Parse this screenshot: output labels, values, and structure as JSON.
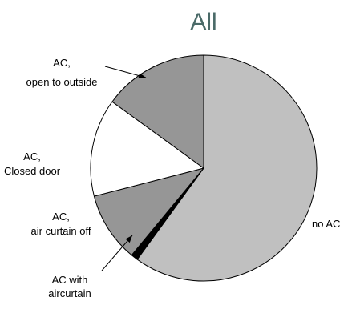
{
  "chart_data": {
    "type": "pie",
    "title": "All",
    "slices": [
      {
        "label": "no AC",
        "value": 60,
        "color": "#c0c0c0",
        "label_lines": [
          "no AC"
        ]
      },
      {
        "label": "AC with aircurtain",
        "value": 1,
        "color": "#000000",
        "label_lines": [
          "AC with",
          "aircurtain"
        ]
      },
      {
        "label": "AC, air curtain off",
        "value": 10,
        "color": "#969696",
        "label_lines": [
          "AC,",
          "air curtain off"
        ]
      },
      {
        "label": "AC, Closed door",
        "value": 14,
        "color": "#ffffff",
        "label_lines": [
          "AC,",
          "Closed door"
        ]
      },
      {
        "label": "AC, open to outside",
        "value": 15,
        "color": "#969696",
        "label_lines": [
          "AC,",
          "open to outside"
        ]
      }
    ],
    "start_angle_deg": 0,
    "direction": "clockwise",
    "legend": "none"
  }
}
